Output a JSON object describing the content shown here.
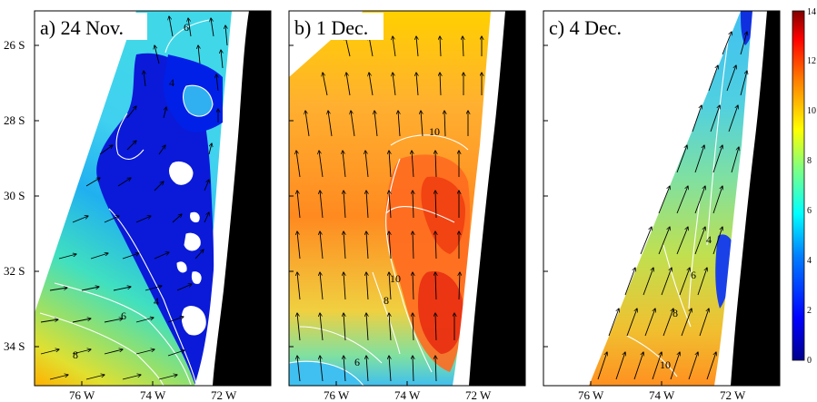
{
  "panels": [
    {
      "id": "a",
      "title": "a) 24 Nov.",
      "contours": [
        "6",
        "4",
        "6",
        "4",
        "8"
      ]
    },
    {
      "id": "b",
      "title": "b) 1 Dec.",
      "contours": [
        "10",
        "10",
        "8",
        "6"
      ]
    },
    {
      "id": "c",
      "title": "c) 4 Dec.",
      "contours": [
        "4",
        "6",
        "8",
        "10"
      ]
    }
  ],
  "y_ticks": [
    "26 S",
    "28 S",
    "30 S",
    "32 S",
    "34 S"
  ],
  "x_ticks": [
    "76 W",
    "74 W",
    "72 W"
  ],
  "colorbar": {
    "ticks": [
      "0",
      "2",
      "4",
      "6",
      "8",
      "10",
      "12",
      "14"
    ],
    "min": 0,
    "max": 14,
    "colors": [
      "#00008f",
      "#0000ff",
      "#0080ff",
      "#00ffff",
      "#80ff80",
      "#ffff00",
      "#ff8000",
      "#ff0000",
      "#800000"
    ]
  },
  "colors": {
    "land": "#000000",
    "coast_strip": "#ffffff",
    "contour_line": "#ffffff"
  }
}
